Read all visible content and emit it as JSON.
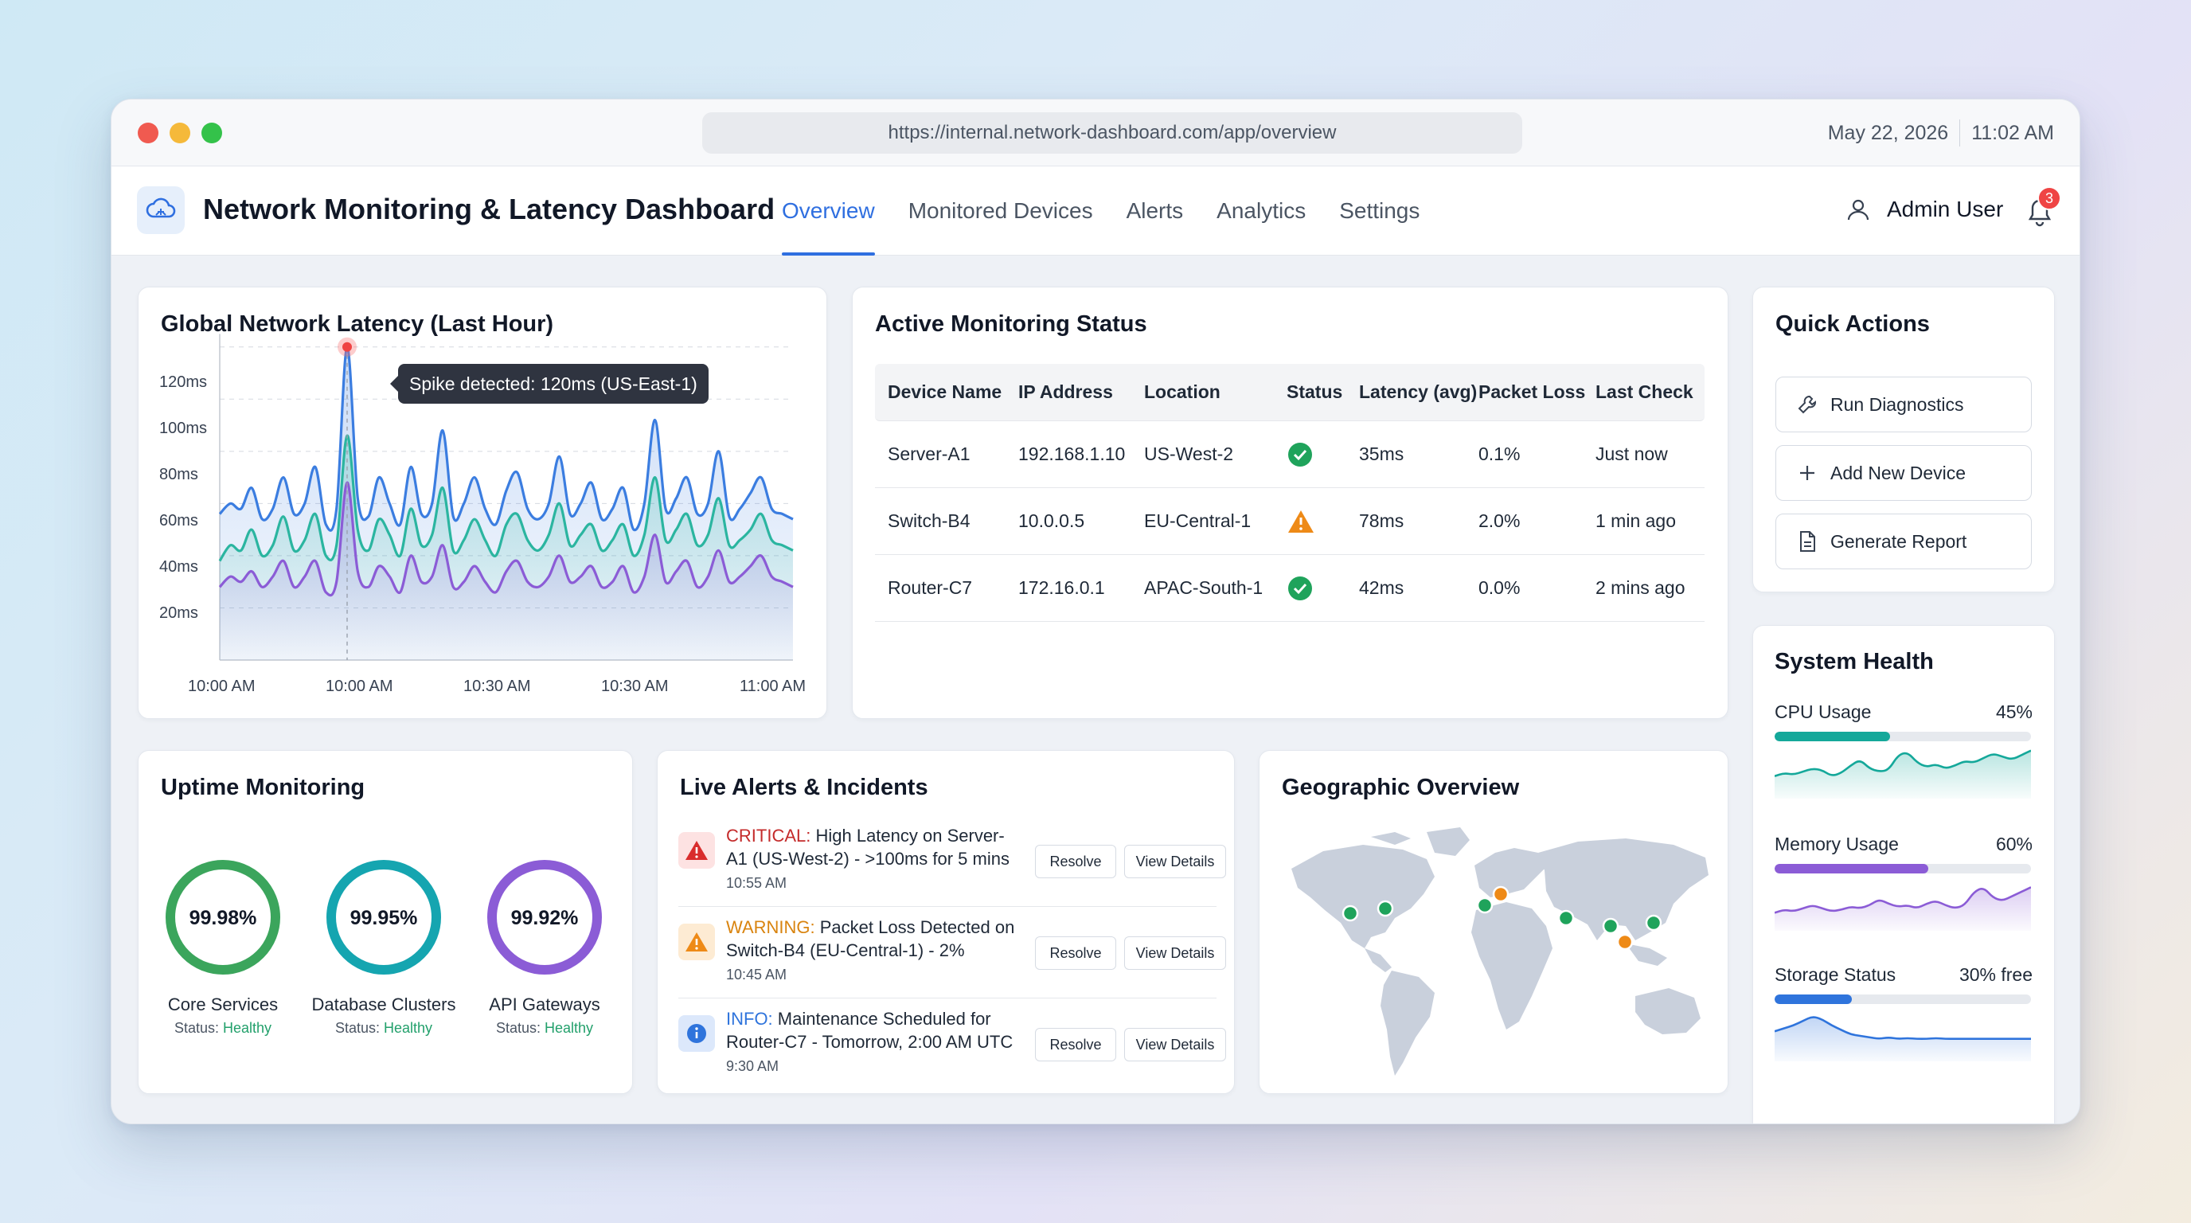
{
  "browser": {
    "url": "https://internal.network-dashboard.com/app/overview",
    "date": "May 22, 2026",
    "time": "11:02 AM"
  },
  "app": {
    "title": "Network Monitoring & Latency Dashboard",
    "nav": [
      "Overview",
      "Monitored Devices",
      "Alerts",
      "Analytics",
      "Settings"
    ],
    "active_nav": "Overview",
    "user_name": "Admin User",
    "notification_count": "3"
  },
  "latency_card": {
    "title": "Global Network Latency (Last Hour)",
    "tooltip": "Spike detected: 120ms (US-East-1)"
  },
  "chart_data": {
    "type": "area",
    "title": "Global Network Latency (Last Hour)",
    "y_ticks": [
      "120ms",
      "100ms",
      "80ms",
      "60ms",
      "40ms",
      "20ms"
    ],
    "x_ticks": [
      "10:00 AM",
      "10:00 AM",
      "10:30 AM",
      "10:30 AM",
      "11:00 AM"
    ],
    "ylim": [
      0,
      130
    ],
    "grid": "horizontal dashed",
    "series": [
      {
        "color": "#3b7de0",
        "values": [
          56,
          60,
          58,
          66,
          54,
          58,
          70,
          56,
          60,
          74,
          52,
          58,
          120,
          62,
          55,
          70,
          60,
          52,
          74,
          56,
          60,
          88,
          55,
          60,
          70,
          58,
          52,
          65,
          72,
          58,
          54,
          60,
          78,
          56,
          60,
          68,
          54,
          58,
          66,
          50,
          60,
          92,
          58,
          62,
          70,
          56,
          60,
          80,
          55,
          58,
          64,
          70,
          58,
          56,
          54
        ]
      },
      {
        "color": "#2bb5a0",
        "values": [
          38,
          44,
          42,
          50,
          40,
          44,
          55,
          42,
          46,
          56,
          40,
          44,
          86,
          50,
          42,
          54,
          48,
          40,
          58,
          44,
          48,
          66,
          42,
          46,
          54,
          46,
          40,
          52,
          56,
          46,
          42,
          48,
          60,
          44,
          48,
          52,
          42,
          46,
          52,
          40,
          48,
          70,
          46,
          50,
          56,
          44,
          48,
          62,
          44,
          46,
          50,
          56,
          46,
          44,
          42
        ]
      },
      {
        "color": "#8b5cd6",
        "values": [
          28,
          32,
          30,
          34,
          28,
          32,
          38,
          28,
          32,
          38,
          26,
          30,
          68,
          34,
          28,
          36,
          32,
          26,
          40,
          30,
          32,
          44,
          28,
          30,
          36,
          30,
          26,
          34,
          38,
          30,
          28,
          32,
          40,
          30,
          32,
          36,
          28,
          30,
          36,
          26,
          32,
          48,
          30,
          34,
          38,
          28,
          32,
          42,
          30,
          32,
          36,
          40,
          32,
          30,
          28
        ]
      }
    ],
    "spike_index": 12,
    "spike_value": 120
  },
  "status_card": {
    "title": "Active Monitoring Status",
    "columns": [
      "Device Name",
      "IP Address",
      "Location",
      "Status",
      "Latency (avg)",
      "Packet Loss",
      "Last Check"
    ],
    "rows": [
      {
        "device": "Server-A1",
        "ip": "192.168.1.10",
        "location": "US-West-2",
        "status": "ok",
        "latency": "35ms",
        "loss": "0.1%",
        "check": "Just now"
      },
      {
        "device": "Switch-B4",
        "ip": "10.0.0.5",
        "location": "EU-Central-1",
        "status": "warning",
        "latency": "78ms",
        "loss": "2.0%",
        "check": "1 min ago"
      },
      {
        "device": "Router-C7",
        "ip": "172.16.0.1",
        "location": "APAC-South-1",
        "status": "ok",
        "latency": "42ms",
        "loss": "0.0%",
        "check": "2 mins ago"
      }
    ]
  },
  "quick_actions": {
    "title": "Quick Actions",
    "buttons": [
      "Run Diagnostics",
      "Add New Device",
      "Generate Report"
    ]
  },
  "system_health": {
    "title": "System Health",
    "metrics": [
      {
        "label": "CPU Usage",
        "value": "45%",
        "fraction": 0.45,
        "color": "#14a89a"
      },
      {
        "label": "Memory Usage",
        "value": "60%",
        "fraction": 0.6,
        "color": "#8b5cd6"
      },
      {
        "label": "Storage Status",
        "value": "30% free",
        "fraction": 0.3,
        "color": "#2f74dc"
      }
    ]
  },
  "uptime": {
    "title": "Uptime Monitoring",
    "status_prefix": "Status:",
    "items": [
      {
        "value": "99.98%",
        "label": "Core Services",
        "status": "Healthy",
        "color": "#3ba55c"
      },
      {
        "value": "99.95%",
        "label": "Database Clusters",
        "status": "Healthy",
        "color": "#15a5b0"
      },
      {
        "value": "99.92%",
        "label": "API Gateways",
        "status": "Healthy",
        "color": "#8b5cd6"
      }
    ]
  },
  "alerts": {
    "title": "Live Alerts & Incidents",
    "resolve_label": "Resolve",
    "details_label": "View Details",
    "items": [
      {
        "level": "CRITICAL:",
        "level_color": "#c42b2b",
        "text": " High Latency on Server-A1 (US-West-2) - >100ms for 5 mins",
        "time": "10:55 AM",
        "icon": "alert-triangle-icon",
        "icon_bg": "#fde2e2",
        "icon_color": "#d92d2d"
      },
      {
        "level": "WARNING:",
        "level_color": "#d9840f",
        "text": " Packet Loss Detected on Switch-B4 (EU-Central-1) - 2%",
        "time": "10:45 AM",
        "icon": "warning-triangle-icon",
        "icon_bg": "#fdebd3",
        "icon_color": "#ee8a17"
      },
      {
        "level": "INFO:",
        "level_color": "#2f74dc",
        "text": " Maintenance Scheduled for Router-C7 - Tomorrow, 2:00 AM UTC",
        "time": "9:30 AM",
        "icon": "info-icon",
        "icon_bg": "#dce8fb",
        "icon_color": "#2f74dc"
      }
    ]
  },
  "geo": {
    "title": "Geographic Overview",
    "nodes": [
      {
        "status": "ok",
        "color": "#1fa35b"
      },
      {
        "status": "ok",
        "color": "#1fa35b"
      },
      {
        "status": "warning",
        "color": "#ee8a17"
      },
      {
        "status": "ok",
        "color": "#1fa35b"
      },
      {
        "status": "ok",
        "color": "#1fa35b"
      },
      {
        "status": "ok",
        "color": "#1fa35b"
      },
      {
        "status": "warning",
        "color": "#ee8a17"
      },
      {
        "status": "ok",
        "color": "#1fa35b"
      }
    ]
  }
}
